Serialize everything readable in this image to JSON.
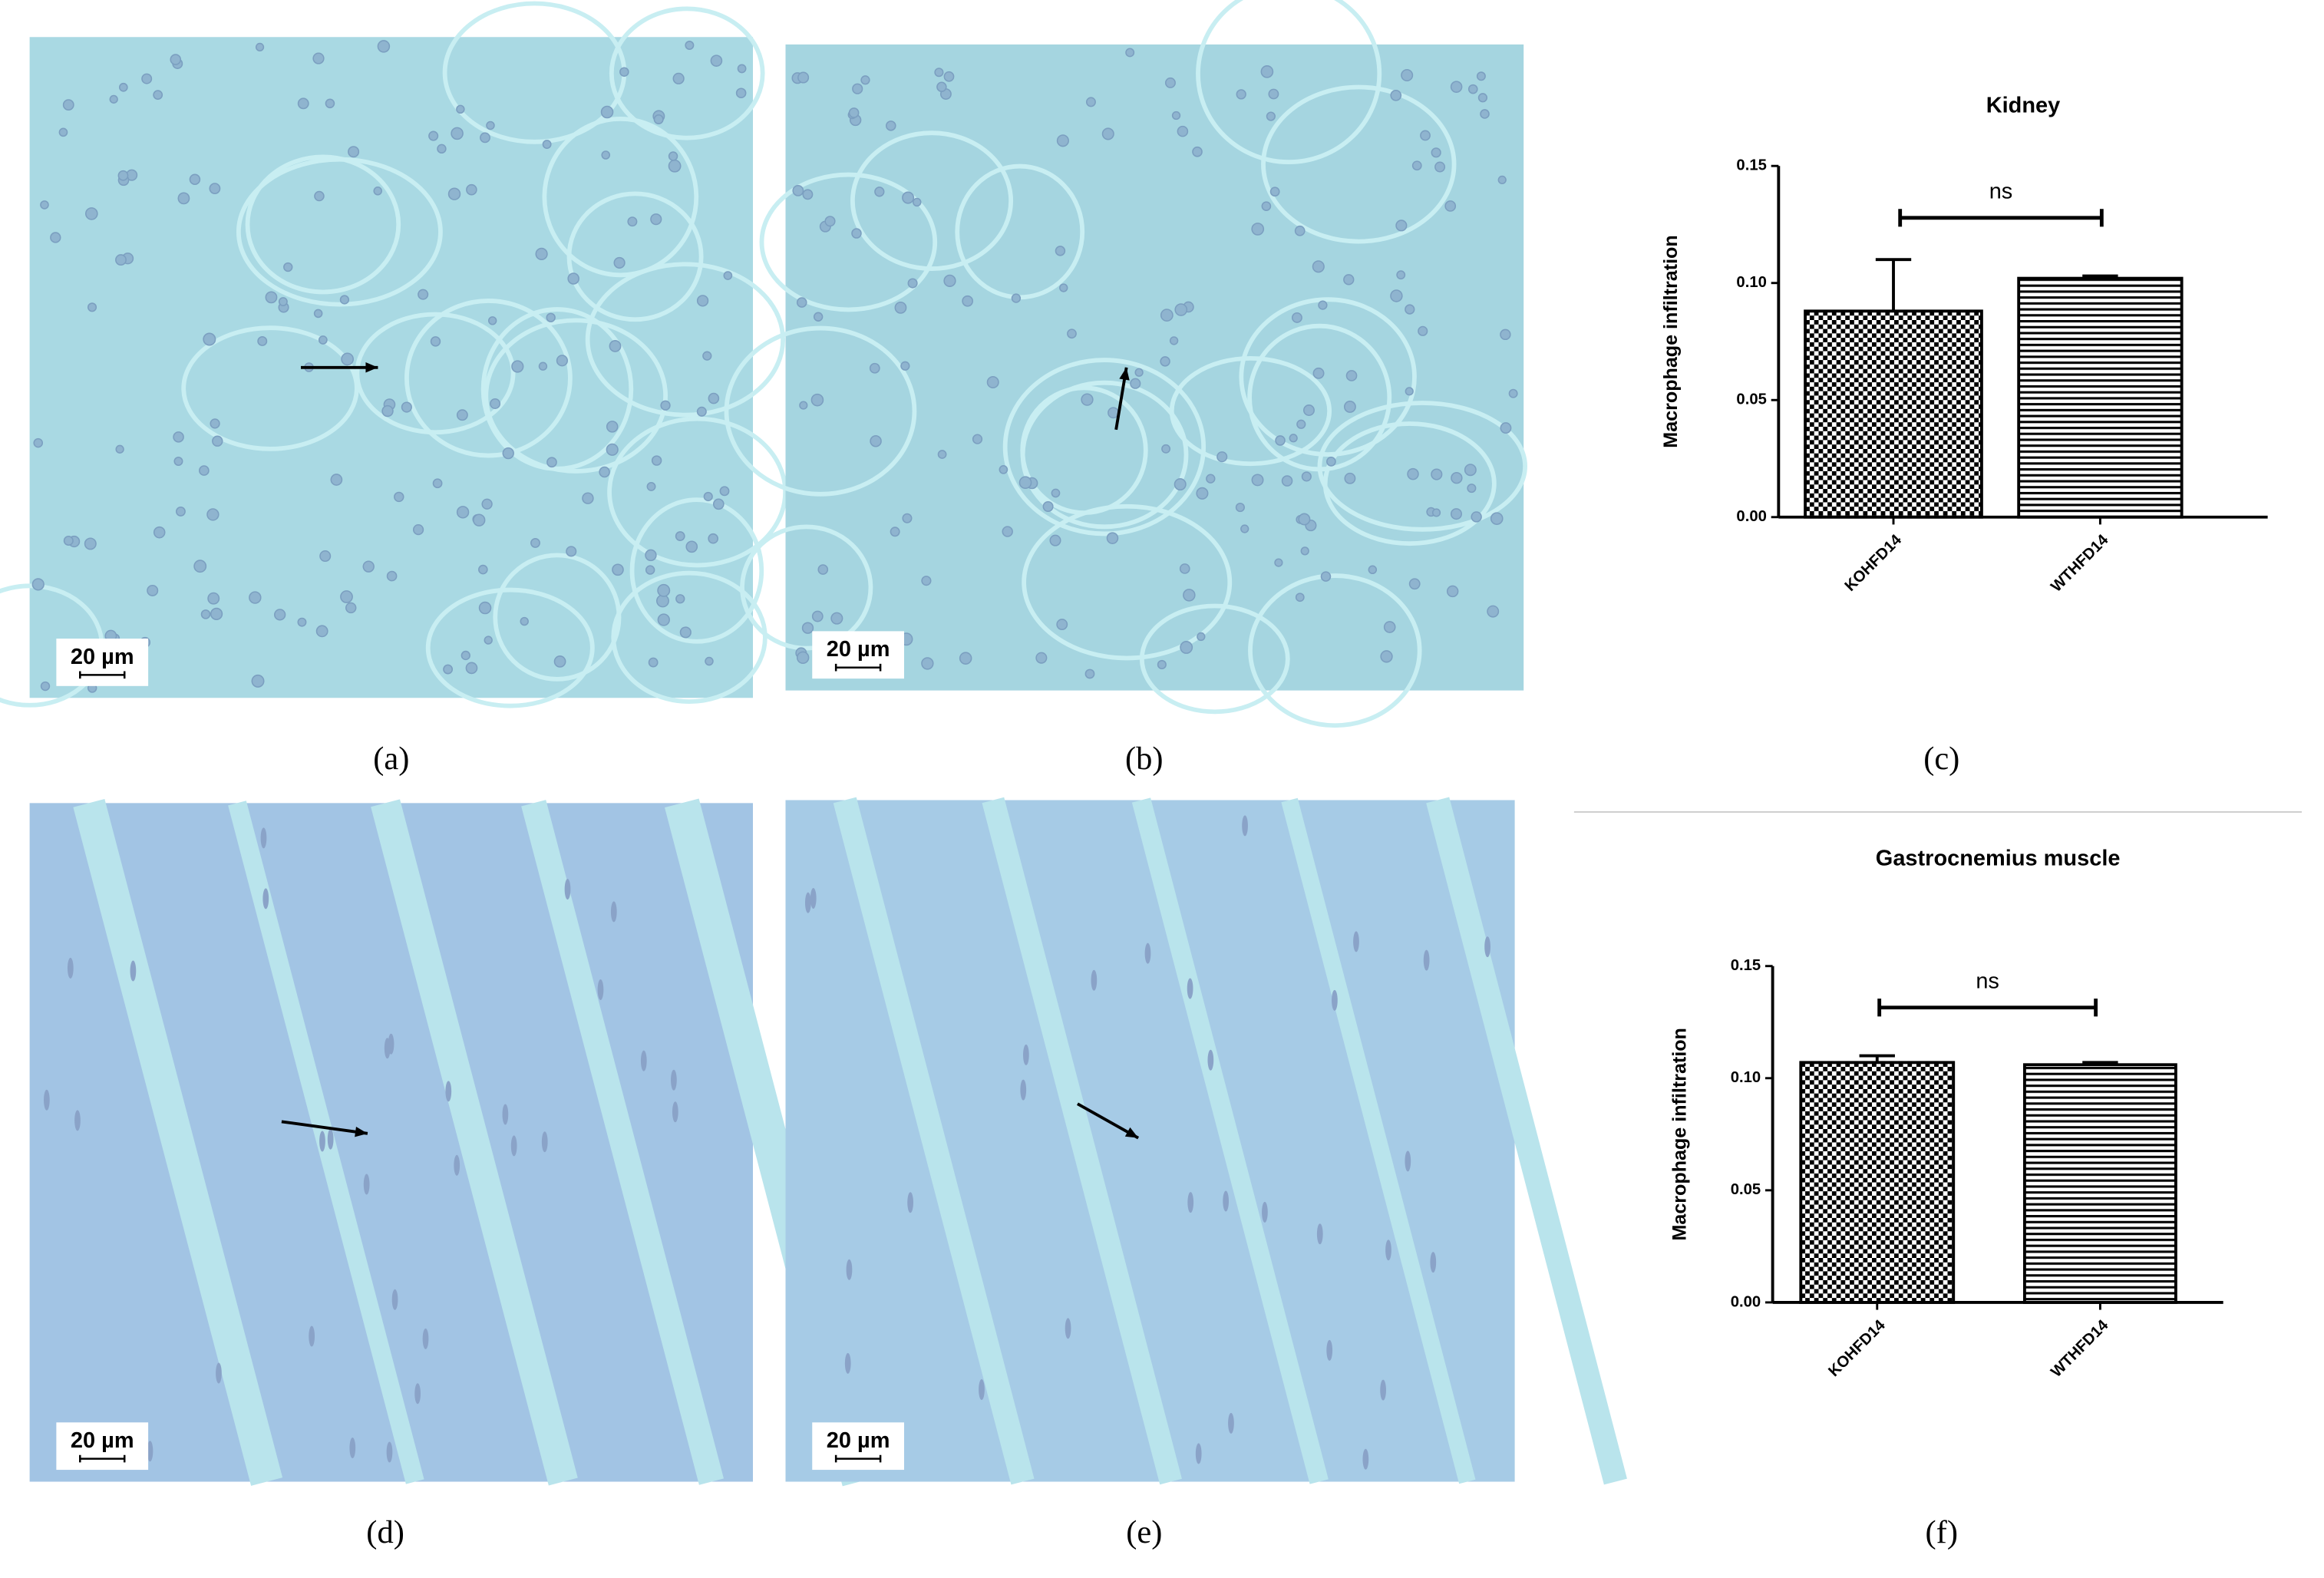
{
  "panel_labels": [
    "(a)",
    "(b)",
    "(c)",
    "(d)",
    "(e)",
    "(f)"
  ],
  "micrographs": [
    {
      "scale_bar": "20 µm"
    },
    {
      "scale_bar": "20 µm"
    },
    {
      "scale_bar": "20 µm"
    },
    {
      "scale_bar": "20 µm"
    }
  ],
  "chart_data": [
    {
      "type": "bar",
      "title": "Kidney",
      "y_label": "Macrophage infiltration",
      "categories": [
        "KOHFD14",
        "WTHFD14"
      ],
      "values": [
        0.088,
        0.102
      ],
      "errors": [
        0.022,
        0.001
      ],
      "patterns": [
        "checker",
        "horizontal-lines"
      ],
      "annotation": "ns",
      "ylim": [
        0,
        0.15
      ],
      "yticks": [
        {
          "value": 0,
          "label": "0.00"
        },
        {
          "value": 0.05,
          "label": "0.05"
        },
        {
          "value": 0.1,
          "label": "0.10"
        },
        {
          "value": 0.15,
          "label": "0.15"
        }
      ]
    },
    {
      "type": "bar",
      "title": "Gastrocnemius muscle",
      "y_label": "Macrophage infiltration",
      "categories": [
        "KOHFD14",
        "WTHFD14"
      ],
      "values": [
        0.107,
        0.106
      ],
      "errors": [
        0.003,
        0.001
      ],
      "patterns": [
        "checker",
        "horizontal-lines"
      ],
      "annotation": "ns",
      "ylim": [
        0,
        0.15
      ],
      "yticks": [
        {
          "value": 0,
          "label": "0.00"
        },
        {
          "value": 0.05,
          "label": "0.05"
        },
        {
          "value": 0.1,
          "label": "0.10"
        },
        {
          "value": 0.15,
          "label": "0.15"
        }
      ]
    }
  ]
}
